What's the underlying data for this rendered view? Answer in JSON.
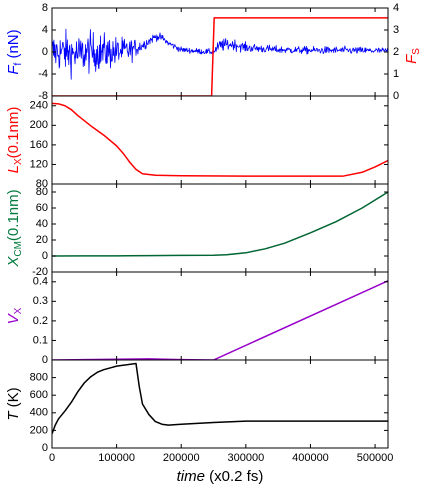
{
  "chart_data": {
    "type": "line",
    "shared_x": {
      "label_italic": "time",
      "label_rest": " (x0.2 fs)",
      "lim": [
        0,
        520000
      ],
      "ticks": [
        0,
        100000,
        200000,
        300000,
        400000,
        500000
      ],
      "tick_labels": [
        "0",
        "100000",
        "200000",
        "300000",
        "400000",
        "500000"
      ]
    },
    "panels": [
      {
        "id": "force",
        "ylabel_main": "F",
        "ylabel_sub": "f",
        "ylabel_unit": " (nN)",
        "ylabel_color": "#0000ff",
        "ylim": [
          -8,
          8
        ],
        "yticks": [
          -8,
          -4,
          0,
          4,
          8
        ],
        "ytick_labels": [
          "-8",
          "-4",
          "0",
          "4",
          "8"
        ],
        "y2label_main": "F",
        "y2label_sub": "S",
        "y2label_color": "#ff0000",
        "y2lim": [
          0,
          4
        ],
        "y2ticks": [
          0,
          1,
          2,
          3,
          4
        ],
        "y2tick_labels": [
          "0",
          "1",
          "2",
          "3",
          "4"
        ],
        "series": [
          {
            "kind": "noisy",
            "color": "#0000ff",
            "axis": "left",
            "x": [
              0,
              20000,
              40000,
              60000,
              80000,
              100000,
              120000,
              140000,
              160000,
              170000,
              180000,
              200000,
              230000,
              250000,
              260000,
              280000,
              300000,
              350000,
              400000,
              450000,
              520000
            ],
            "y": [
              0,
              0,
              -0.5,
              0,
              0,
              0,
              0.3,
              1.2,
              2.8,
              2.6,
              1.6,
              0.4,
              0.1,
              0,
              1.2,
              1.4,
              0.8,
              0.4,
              0.3,
              0.3,
              0.2
            ],
            "amplitude": [
              4.2,
              4.4,
              4.2,
              4.3,
              3.9,
              3.3,
              2.6,
              1.2,
              0.8,
              0.8,
              0.7,
              0.6,
              0.6,
              0.6,
              1.4,
              1.2,
              1,
              0.8,
              0.8,
              0.8,
              0.7
            ]
          },
          {
            "kind": "line",
            "color": "#ff0000",
            "axis": "right",
            "x": [
              0,
              247000,
              251000,
              520000
            ],
            "y": [
              0,
              0,
              3.55,
              3.55
            ]
          }
        ]
      },
      {
        "id": "length",
        "ylabel_main": "L",
        "ylabel_sub": "X",
        "ylabel_unit": "(0.1nm)",
        "ylabel_color": "#ff0000",
        "ylim": [
          80,
          260
        ],
        "yticks": [
          80,
          120,
          160,
          200,
          240
        ],
        "ytick_labels": [
          "80",
          "120",
          "160",
          "200",
          "240"
        ],
        "series": [
          {
            "kind": "line",
            "color": "#ff0000",
            "x": [
              0,
              10000,
              20000,
              30000,
              40000,
              60000,
              80000,
              100000,
              110000,
              120000,
              130000,
              140000,
              160000,
              200000,
              300000,
              400000,
              450000,
              480000,
              500000,
              520000
            ],
            "y": [
              245,
              244,
              240,
              232,
              220,
              199,
              180,
              158,
              143,
              125,
              110,
              101,
              98,
              97,
              96,
              96,
              96,
              104,
              115,
              128
            ]
          }
        ]
      },
      {
        "id": "xcm",
        "ylabel_main": "X",
        "ylabel_sub": "CM",
        "ylabel_unit": "(0.1nm)",
        "ylabel_color": "#007a3d",
        "ylim": [
          -20,
          90
        ],
        "yticks": [
          -20,
          0,
          20,
          40,
          60,
          80
        ],
        "ytick_labels": [
          "-20",
          "0",
          "20",
          "40",
          "60",
          "80"
        ],
        "series": [
          {
            "kind": "line",
            "color": "#006633",
            "x": [
              0,
              50000,
              100000,
              150000,
              200000,
              250000,
              270000,
              300000,
              330000,
              360000,
              400000,
              440000,
              480000,
              520000
            ],
            "y": [
              0,
              0.1,
              0.2,
              0.4,
              0.8,
              1,
              1.5,
              4,
              9,
              16,
              29,
              43,
              60,
              80
            ]
          }
        ]
      },
      {
        "id": "vx",
        "ylabel_main": "V",
        "ylabel_sub": "X",
        "ylabel_unit": "",
        "ylabel_color": "#9900cc",
        "ylim": [
          0,
          0.45
        ],
        "yticks": [
          0,
          0.1,
          0.2,
          0.3,
          0.4
        ],
        "ytick_labels": [
          "0",
          "0.1",
          "0.2",
          "0.3",
          "0.4"
        ],
        "series": [
          {
            "kind": "line",
            "color": "#9900cc",
            "x": [
              0,
              50000,
              100000,
              150000,
              200000,
              250000,
              520000
            ],
            "y": [
              0,
              0.002,
              0.004,
              0.006,
              0.002,
              0,
              0.405
            ]
          }
        ]
      },
      {
        "id": "temperature",
        "ylabel_main": "T",
        "ylabel_sub": "",
        "ylabel_unit": " (K)",
        "ylabel_color": "#000000",
        "ylim": [
          0,
          1000
        ],
        "yticks": [
          0,
          200,
          400,
          600,
          800
        ],
        "ytick_labels": [
          "0",
          "200",
          "400",
          "600",
          "800"
        ],
        "series": [
          {
            "kind": "line",
            "color": "#000000",
            "x": [
              0,
              5000,
              10000,
              20000,
              30000,
              40000,
              50000,
              60000,
              70000,
              80000,
              90000,
              100000,
              110000,
              120000,
              130000,
              135000,
              140000,
              150000,
              160000,
              170000,
              180000,
              200000,
              250000,
              300000,
              400000,
              520000
            ],
            "y": [
              160,
              260,
              330,
              420,
              520,
              640,
              740,
              810,
              860,
              890,
              910,
              930,
              940,
              950,
              960,
              700,
              500,
              380,
              300,
              270,
              260,
              270,
              290,
              305,
              305,
              305
            ]
          }
        ]
      }
    ]
  }
}
